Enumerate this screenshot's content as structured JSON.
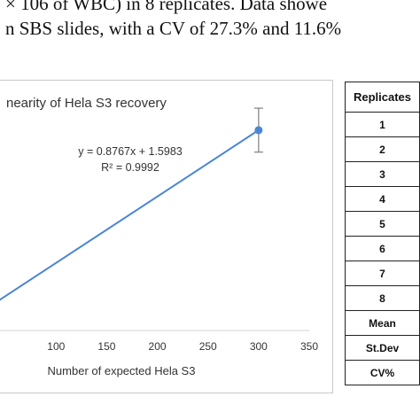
{
  "caption": {
    "line1": "× 106 of WBC) in 8 replicates. Data showe",
    "line2": "n SBS slides, with a CV of 27.3% and 11.6%"
  },
  "chart_data": {
    "type": "scatter",
    "title": "nearity of Hela S3 recovery",
    "xlabel": "Number of expected Hela S3",
    "ylabel": "",
    "x_ticks": [
      "100",
      "150",
      "200",
      "250",
      "300",
      "350"
    ],
    "xlim": [
      42,
      350
    ],
    "ylim": [
      0,
      330
    ],
    "points": [
      {
        "x": 300,
        "y": 264.6,
        "error": 29
      }
    ],
    "trendline": {
      "slope": 0.8767,
      "intercept": 1.5983,
      "x_start": 42,
      "x_end": 300
    },
    "equation": "y = 0.8767x + 1.5983",
    "r_squared": "R² = 0.9992",
    "grid": false,
    "colors": {
      "series": "#4a86d4",
      "error_bar": "#7f7f7f",
      "text": "#333333"
    }
  },
  "table": {
    "header": "Replicates",
    "rows": [
      "1",
      "2",
      "3",
      "4",
      "5",
      "6",
      "7",
      "8",
      "Mean",
      "St.Dev",
      "CV%"
    ]
  }
}
